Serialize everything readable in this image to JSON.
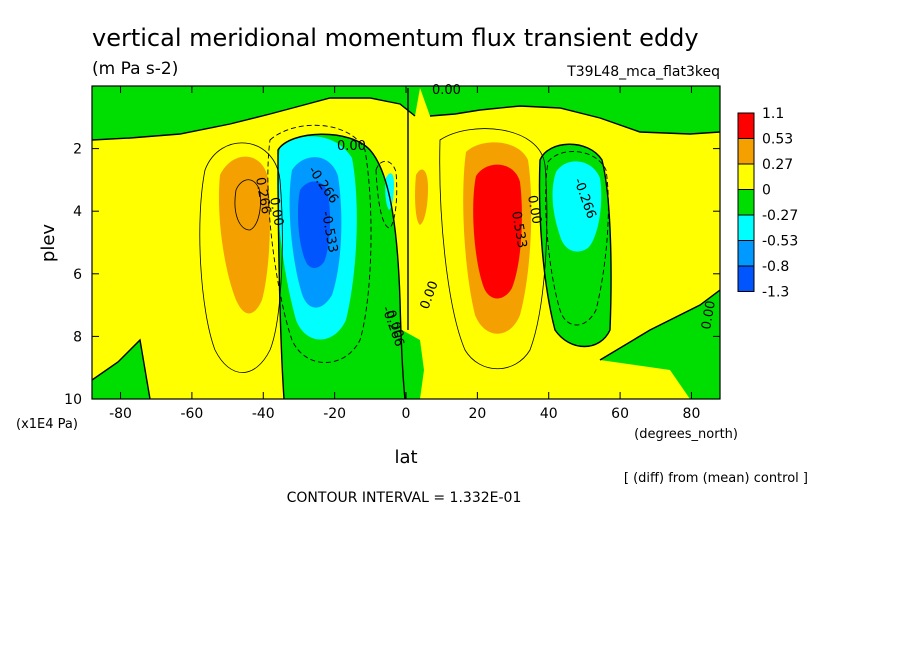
{
  "chart_data": {
    "type": "contour",
    "title": "vertical meridional momentum flux transient eddy",
    "units": "(m Pa s-2)",
    "run_label": "T39L48_mca_flat3keq",
    "xlabel": "lat",
    "x_units": "(degrees_north)",
    "ylabel": "plev",
    "y_units": "(x1E4 Pa)",
    "xlim": [
      -88,
      88
    ],
    "ylim": [
      10,
      0
    ],
    "x_ticks": [
      -80,
      -60,
      -40,
      -20,
      0,
      20,
      40,
      60,
      80
    ],
    "y_ticks": [
      2,
      4,
      6,
      8,
      10
    ],
    "colorbar": {
      "levels": [
        "1.1",
        "0.53",
        "0.27",
        "0",
        "-0.27",
        "-0.53",
        "-0.8",
        "-1.3"
      ],
      "colors": [
        "#ff0000",
        "#f4a000",
        "#ffff00",
        "#00dd00",
        "#00ffff",
        "#0099ff",
        "#0055ff"
      ]
    },
    "contour_labels": [
      "0.00",
      "0.00",
      "-0.266",
      "0.266",
      "0.00",
      "-0.533",
      "-0.266",
      "0.00",
      "0.00",
      "0.533",
      "0.00",
      "-0.266",
      "0.00"
    ],
    "extrema": [
      {
        "lat": -45,
        "plev": 4.2,
        "value": 0.4
      },
      {
        "lat": -27,
        "plev": 4.3,
        "value": -1.1
      },
      {
        "lat": -4,
        "plev": 3.8,
        "value": -0.3
      },
      {
        "lat": 5,
        "plev": 3.8,
        "value": 0.3
      },
      {
        "lat": 27,
        "plev": 4.5,
        "value": 1.1
      },
      {
        "lat": 47,
        "plev": 4.0,
        "value": -0.6
      }
    ],
    "footnote": "[ (diff) from (mean) control ]",
    "contour_interval": "CONTOUR INTERVAL = 1.332E-01"
  }
}
